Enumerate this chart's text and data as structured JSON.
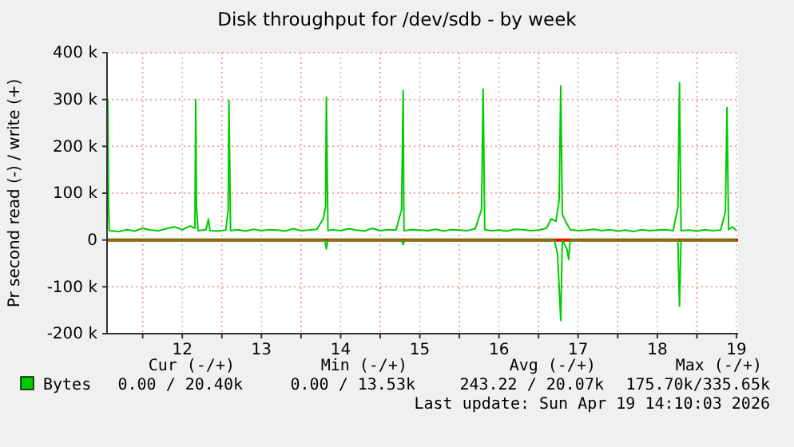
{
  "chart_data": {
    "type": "line",
    "title": "Disk throughput for /dev/sdb - by week",
    "ylabel": "Pr second read (-) / write (+)",
    "xlim": [
      11.05,
      19.02
    ],
    "xticks": [
      {
        "value": 11.5,
        "label": null
      },
      {
        "value": 12,
        "label": "12"
      },
      {
        "value": 12.5,
        "label": null
      },
      {
        "value": 13,
        "label": "13"
      },
      {
        "value": 13.5,
        "label": null
      },
      {
        "value": 14,
        "label": "14"
      },
      {
        "value": 14.5,
        "label": null
      },
      {
        "value": 15,
        "label": "15"
      },
      {
        "value": 15.5,
        "label": null
      },
      {
        "value": 16,
        "label": "16"
      },
      {
        "value": 16.5,
        "label": null
      },
      {
        "value": 17,
        "label": "17"
      },
      {
        "value": 17.5,
        "label": null
      },
      {
        "value": 18,
        "label": "18"
      },
      {
        "value": 18.5,
        "label": null
      },
      {
        "value": 19,
        "label": "19"
      }
    ],
    "ylim": [
      -200,
      400
    ],
    "yticks": [
      {
        "value": -200,
        "label": "-200 k"
      },
      {
        "value": -100,
        "label": "-100 k"
      },
      0,
      {
        "value": 100,
        "label": "100 k"
      },
      {
        "value": 200,
        "label": "200 k"
      },
      {
        "value": 300,
        "label": "300 k"
      },
      {
        "value": 400,
        "label": "400 k"
      }
    ],
    "grid": true,
    "legend": "bottom",
    "ref_lines": [
      {
        "axis": "y",
        "value": 0,
        "color": "#ff0000"
      }
    ],
    "series": [
      {
        "name": "Bytes",
        "color": "#00cc00",
        "x": [
          11.05,
          11.06,
          11.07,
          11.08,
          11.2,
          11.3,
          11.4,
          11.5,
          11.6,
          11.7,
          11.8,
          11.9,
          12.0,
          12.1,
          12.16,
          12.17,
          12.18,
          12.2,
          12.3,
          12.33,
          12.35,
          12.45,
          12.55,
          12.58,
          12.59,
          12.61,
          12.7,
          12.8,
          12.9,
          13.0,
          13.1,
          13.2,
          13.3,
          13.4,
          13.5,
          13.6,
          13.7,
          13.78,
          13.81,
          13.82,
          13.84,
          13.9,
          14.0,
          14.1,
          14.2,
          14.3,
          14.4,
          14.5,
          14.6,
          14.7,
          14.77,
          14.79,
          14.8,
          14.9,
          15.0,
          15.1,
          15.2,
          15.3,
          15.4,
          15.5,
          15.6,
          15.7,
          15.78,
          15.8,
          15.82,
          15.9,
          16.0,
          16.1,
          16.2,
          16.3,
          16.4,
          16.5,
          16.6,
          16.66,
          16.72,
          16.76,
          16.78,
          16.8,
          16.84,
          16.9,
          17.0,
          17.1,
          17.2,
          17.3,
          17.4,
          17.5,
          17.6,
          17.7,
          17.8,
          17.9,
          18.0,
          18.1,
          18.2,
          18.26,
          18.28,
          18.3,
          18.4,
          18.5,
          18.6,
          18.7,
          18.8,
          18.86,
          18.88,
          18.9,
          18.95,
          19.0
        ],
        "values": [
          20,
          300,
          65,
          20,
          18,
          22,
          19,
          25,
          21,
          20,
          24,
          28,
          22,
          30,
          25,
          300,
          70,
          20,
          22,
          45,
          20,
          19,
          21,
          65,
          298,
          20,
          22,
          19,
          23,
          20,
          22,
          21,
          19,
          24,
          20,
          21,
          23,
          45,
          70,
          305,
          20,
          22,
          20,
          24,
          21,
          19,
          25,
          20,
          22,
          21,
          65,
          319,
          20,
          22,
          21,
          20,
          23,
          19,
          22,
          21,
          20,
          24,
          65,
          322,
          22,
          20,
          21,
          19,
          23,
          22,
          20,
          21,
          25,
          45,
          40,
          85,
          329,
          55,
          40,
          22,
          20,
          21,
          23,
          20,
          22,
          19,
          21,
          18,
          22,
          20,
          21,
          22,
          20,
          70,
          336,
          20,
          21,
          19,
          22,
          20,
          21,
          60,
          283,
          22,
          28,
          20
        ]
      },
      {
        "color": "#00cc00",
        "x": [
          11.05,
          13.8,
          13.82,
          13.84,
          14.77,
          14.79,
          14.81,
          16.7,
          16.74,
          16.78,
          16.8,
          16.86,
          16.88,
          16.9,
          18.26,
          18.28,
          18.3,
          19.0
        ],
        "values": [
          0,
          0,
          -19,
          0,
          0,
          -10,
          0,
          0,
          -30,
          -172,
          0,
          -20,
          -42,
          0,
          0,
          -141,
          0,
          0
        ]
      }
    ],
    "annotations": [
      "Cur (-/+)",
      "Min (-/+)",
      "Avg (-/+)",
      "Max (-/+)",
      "0.00 / 20.40k",
      "0.00 / 13.53k",
      "243.22 / 20.07k",
      "175.70k/335.65k",
      "Last update: Sun Apr 19 14:10:03 2026"
    ]
  }
}
